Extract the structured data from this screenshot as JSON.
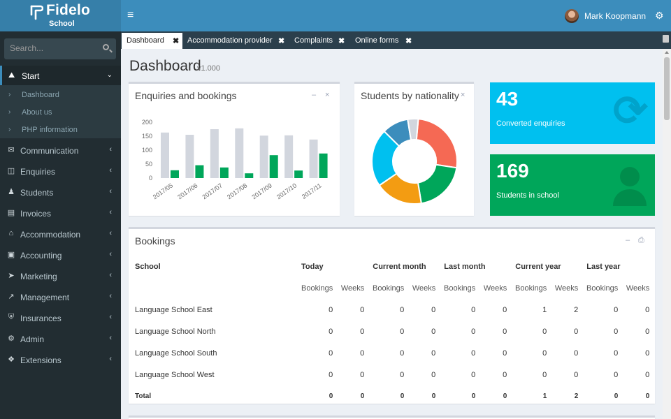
{
  "header": {
    "brand": "Fidelo",
    "brand_sub": "School",
    "menu_icon": "bars-icon",
    "user_name": "Mark Koopmann",
    "settings_icon": "gears-icon"
  },
  "sidebar": {
    "search_placeholder": "Search...",
    "start": {
      "label": "Start",
      "icon": "dashboard-icon"
    },
    "submenu": [
      {
        "label": "Dashboard"
      },
      {
        "label": "About us"
      },
      {
        "label": "PHP information"
      }
    ],
    "items": [
      {
        "label": "Communication",
        "icon": "envelope-icon"
      },
      {
        "label": "Enquiries",
        "icon": "inbox-icon"
      },
      {
        "label": "Students",
        "icon": "users-icon"
      },
      {
        "label": "Invoices",
        "icon": "file-icon"
      },
      {
        "label": "Accommodation",
        "icon": "home-icon"
      },
      {
        "label": "Accounting",
        "icon": "money-icon"
      },
      {
        "label": "Marketing",
        "icon": "paper-plane-icon"
      },
      {
        "label": "Management",
        "icon": "line-chart-icon"
      },
      {
        "label": "Insurances",
        "icon": "shield-icon"
      },
      {
        "label": "Admin",
        "icon": "cogs-icon"
      },
      {
        "label": "Extensions",
        "icon": "cubes-icon"
      }
    ]
  },
  "tabs": [
    {
      "label": "Dashboard",
      "active": true
    },
    {
      "label": "Accommodation provider"
    },
    {
      "label": "Complaints"
    },
    {
      "label": "Online forms"
    }
  ],
  "page": {
    "title": "Dashboard",
    "version": "v1.000"
  },
  "enquiries_box": {
    "title": "Enquiries and bookings"
  },
  "nationality_box": {
    "title": "Students by nationality"
  },
  "info_boxes": [
    {
      "number": "43",
      "text": "Converted enquiries",
      "color": "#00c0ef",
      "icon": "refresh-icon"
    },
    {
      "number": "169",
      "text": "Students in school",
      "color": "#00a65a",
      "icon": "user-icon"
    }
  ],
  "bookings": {
    "title": "Bookings",
    "school_header": "School",
    "period_headers": [
      "Today",
      "Current month",
      "Last month",
      "Current year",
      "Last year"
    ],
    "sub_headers": [
      "Bookings",
      "Weeks"
    ],
    "rows": [
      {
        "name": "Language School East",
        "values": [
          "0",
          "0",
          "0",
          "0",
          "0",
          "0",
          "1",
          "2",
          "0",
          "0"
        ]
      },
      {
        "name": "Language School North",
        "values": [
          "0",
          "0",
          "0",
          "0",
          "0",
          "0",
          "0",
          "0",
          "0",
          "0"
        ]
      },
      {
        "name": "Language School South",
        "values": [
          "0",
          "0",
          "0",
          "0",
          "0",
          "0",
          "0",
          "0",
          "0",
          "0"
        ]
      },
      {
        "name": "Language School West",
        "values": [
          "0",
          "0",
          "0",
          "0",
          "0",
          "0",
          "0",
          "0",
          "0",
          "0"
        ]
      }
    ],
    "total": {
      "name": "Total",
      "values": [
        "0",
        "0",
        "0",
        "0",
        "0",
        "0",
        "1",
        "2",
        "0",
        "0"
      ]
    }
  },
  "chart_data": [
    {
      "type": "bar",
      "title": "Enquiries and bookings",
      "categories": [
        "2017/05",
        "2017/06",
        "2017/07",
        "2017/08",
        "2017/09",
        "2017/10",
        "2017/11"
      ],
      "series": [
        {
          "values": [
            163,
            155,
            175,
            178,
            152,
            153,
            138
          ],
          "color": "#d2d6de"
        },
        {
          "values": [
            28,
            46,
            38,
            17,
            82,
            27,
            88
          ],
          "color": "#00a65a"
        }
      ],
      "yticks": [
        0,
        50,
        100,
        150,
        200
      ],
      "ylim": [
        0,
        200
      ]
    },
    {
      "type": "pie",
      "title": "Students by nationality",
      "donut": true,
      "slices": [
        {
          "value": 26,
          "color": "#f56954"
        },
        {
          "value": 20,
          "color": "#00a65a"
        },
        {
          "value": 18,
          "color": "#f39c12"
        },
        {
          "value": 22,
          "color": "#00c0ef"
        },
        {
          "value": 10,
          "color": "#3c8dbc"
        },
        {
          "value": 4,
          "color": "#d2d6de"
        }
      ]
    }
  ]
}
